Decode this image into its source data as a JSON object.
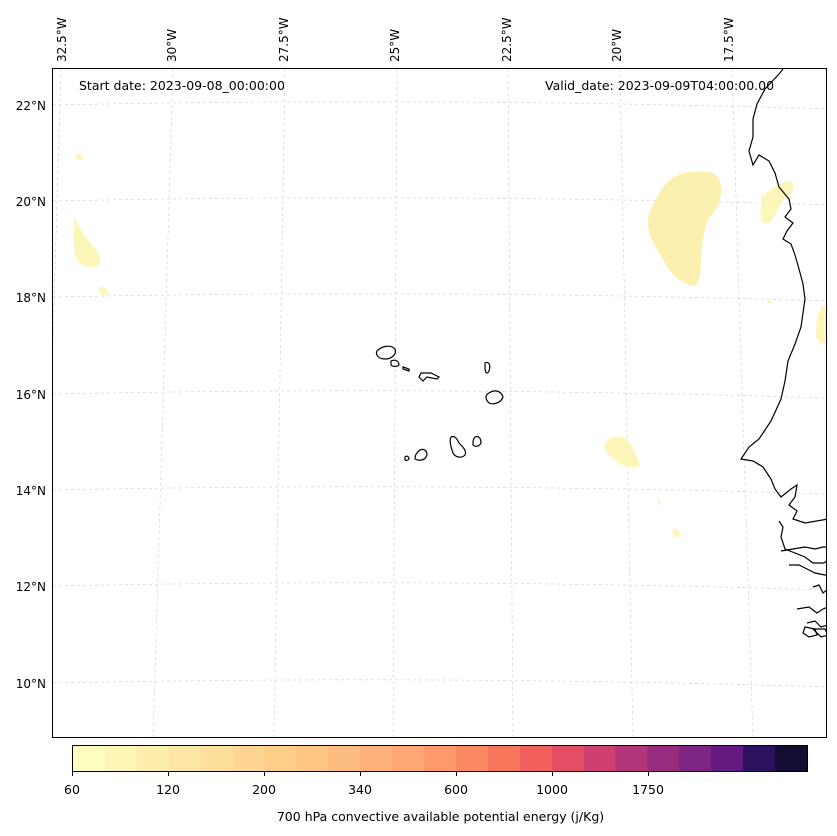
{
  "map": {
    "start_date": "Start date: 2023-09-08_00:00:00",
    "valid_date": "Valid_date: 2023-09-09T04:00:00.00",
    "lon_labels": [
      "32.5°W",
      "30°W",
      "27.5°W",
      "25°W",
      "22.5°W",
      "20°W",
      "17.5°W"
    ],
    "lat_labels": [
      "22°N",
      "20°N",
      "18°N",
      "16°N",
      "14°N",
      "12°N",
      "10°N"
    ],
    "features": {
      "coastline": "west-africa-coastline",
      "islands": "cape-verde-islands",
      "cape_cluster": "cape-blob"
    }
  },
  "colorbar": {
    "label": "700 hPa convective available potential energy (j/Kg)",
    "ticks": [
      "60",
      "120",
      "200",
      "340",
      "600",
      "1000",
      "1750"
    ],
    "colors": [
      "#fcfdbf",
      "#fcf5b6",
      "#fdeeac",
      "#fde6a3",
      "#fedf99",
      "#fed691",
      "#fece89",
      "#fec685",
      "#febd80",
      "#feb27a",
      "#fea772",
      "#fd9a6a",
      "#fb8a62",
      "#f8765c",
      "#f1605d",
      "#e34e65",
      "#cd4071",
      "#b4367a",
      "#982d80",
      "#7e2482",
      "#63197f",
      "#2c115f",
      "#120d31"
    ],
    "tick_positions": [
      0,
      3,
      6,
      9,
      12,
      15,
      18
    ]
  },
  "cape_colors": {
    "light": "#fcf6b8",
    "mid": "#fbf0b0"
  }
}
